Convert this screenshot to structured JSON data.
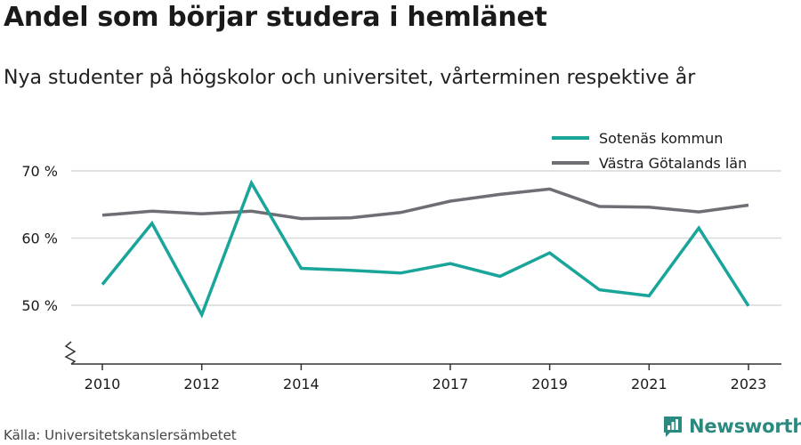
{
  "header": {
    "title": "Andel som börjar studera i hemlänet",
    "subtitle": "Nya studenter på högskolor och universitet, vårterminen respektive år"
  },
  "footer": {
    "source": "Källa: Universitetskanslersämbetet",
    "brand": "Newsworthy"
  },
  "colors": {
    "sotenas": "#1aa59a",
    "vastra": "#6e6e75",
    "grid": "#d9d9d9",
    "axis": "#333333",
    "brand": "#2b8a80"
  },
  "chart_data": {
    "type": "line",
    "title": "Andel som börjar studera i hemlänet",
    "subtitle": "Nya studenter på högskolor och universitet, vårterminen respektive år",
    "x": [
      2010,
      2011,
      2012,
      2013,
      2014,
      2015,
      2016,
      2017,
      2018,
      2019,
      2020,
      2021,
      2022,
      2023
    ],
    "x_ticks": [
      2010,
      2012,
      2014,
      2017,
      2019,
      2021,
      2023
    ],
    "y_ticks": [
      50,
      60,
      70
    ],
    "y_tick_labels": [
      "50 %",
      "60 %",
      "70 %"
    ],
    "ylim": [
      41,
      76
    ],
    "y_axis_break": true,
    "grid": true,
    "legend_position": "top-right",
    "series": [
      {
        "name": "Sotenäs kommun",
        "values": [
          53.1,
          62.2,
          48.6,
          68.2,
          55.5,
          55.2,
          54.8,
          56.2,
          54.3,
          57.8,
          52.3,
          51.4,
          61.5,
          49.9
        ]
      },
      {
        "name": "Västra Götalands län",
        "values": [
          63.4,
          64.0,
          63.6,
          64.0,
          62.9,
          63.0,
          63.8,
          65.5,
          66.5,
          67.3,
          64.7,
          64.6,
          63.9,
          64.9
        ]
      }
    ]
  }
}
